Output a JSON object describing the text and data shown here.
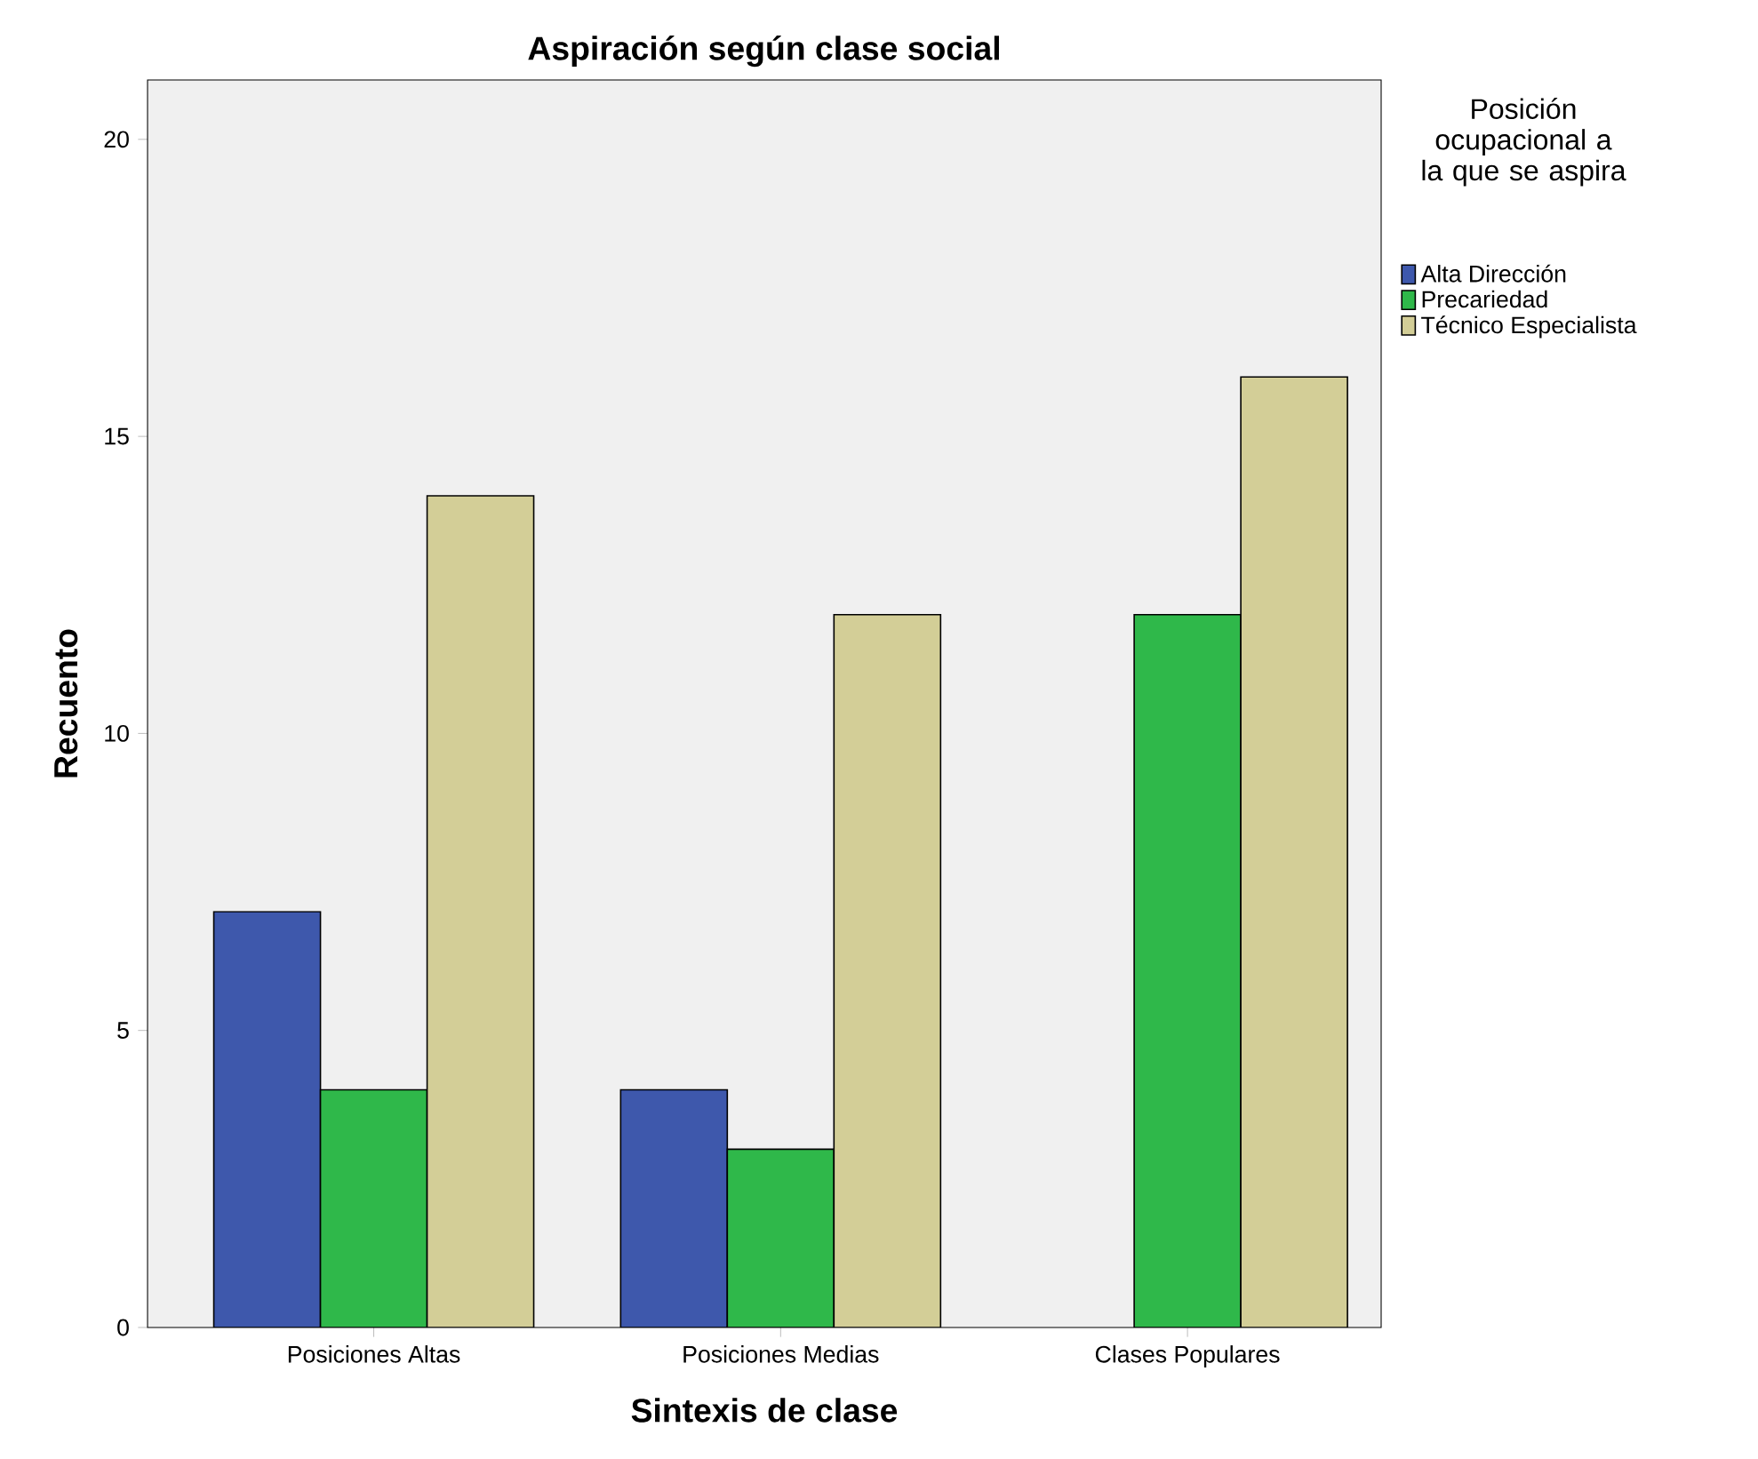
{
  "chart_data": {
    "type": "bar",
    "title": "Aspiración según clase social",
    "xlabel": "Sintexis de clase",
    "ylabel": "Recuento",
    "legend_title": "Posición ocupacional a la que se aspira",
    "categories": [
      "Posiciones Altas",
      "Posiciones Medias",
      "Clases Populares"
    ],
    "series": [
      {
        "name": "Alta Dirección",
        "color": "#3e58ac",
        "values": [
          7,
          4,
          null
        ]
      },
      {
        "name": "Precariedad",
        "color": "#2fb84a",
        "values": [
          4,
          3,
          12
        ]
      },
      {
        "name": "Técnico Especialista",
        "color": "#d3ce97",
        "values": [
          14,
          12,
          16
        ]
      }
    ],
    "ylim": [
      0,
      21
    ],
    "yticks": [
      0,
      5,
      10,
      15,
      20
    ],
    "grid": false,
    "legend": "right"
  }
}
